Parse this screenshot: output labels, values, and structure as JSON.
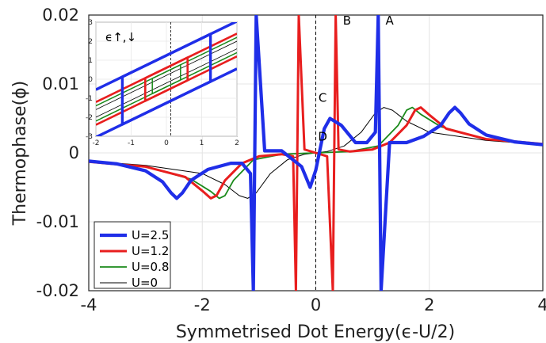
{
  "chart_data": {
    "type": "line",
    "xlabel": "Symmetrised Dot Energy(ϵ-U/2)",
    "ylabel": "Thermophase(ϕ)",
    "xlim": [
      -4,
      4
    ],
    "ylim": [
      -0.02,
      0.02
    ],
    "x_ticks": [
      "-4",
      "-2",
      "0",
      "2",
      "4"
    ],
    "y_ticks": [
      "0.02",
      "0.01",
      "0",
      "-0.01",
      "-0.02"
    ],
    "grid": true,
    "legend_position": "bottom-left",
    "series": [
      {
        "name": "U=2.5",
        "color": "#1f2ee8",
        "x": [
          -4,
          -3.5,
          -3.0,
          -2.7,
          -2.55,
          -2.45,
          -2.35,
          -2.2,
          -1.9,
          -1.5,
          -1.3,
          -1.15,
          -1.1,
          -1.05,
          -0.9,
          -0.6,
          -0.25,
          -0.15,
          -0.1,
          0.0,
          0.15,
          0.25,
          0.45,
          0.7,
          0.9,
          1.05,
          1.1,
          1.15,
          1.3,
          1.6,
          1.9,
          2.2,
          2.35,
          2.45,
          2.55,
          2.7,
          3.0,
          3.5,
          4.0
        ],
        "y": [
          -0.0012,
          -0.0016,
          -0.0026,
          -0.0042,
          -0.0058,
          -0.0066,
          -0.0058,
          -0.004,
          -0.0024,
          -0.0015,
          -0.0015,
          -0.003,
          -0.02,
          0.02,
          0.0003,
          0.0003,
          -0.002,
          -0.004,
          -0.005,
          -0.0025,
          0.0035,
          0.005,
          0.004,
          0.0015,
          0.0015,
          0.003,
          0.02,
          -0.02,
          0.0015,
          0.0015,
          0.0024,
          0.004,
          0.0058,
          0.0066,
          0.0058,
          0.0042,
          0.0026,
          0.0016,
          0.0012
        ]
      },
      {
        "name": "U=1.2",
        "color": "#e81e1e",
        "x": [
          -4,
          -3.0,
          -2.3,
          -2.0,
          -1.85,
          -1.75,
          -1.6,
          -1.3,
          -1.0,
          -0.6,
          -0.4,
          -0.35,
          -0.3,
          -0.2,
          0.0,
          0.2,
          0.3,
          0.35,
          0.4,
          0.6,
          1.0,
          1.3,
          1.6,
          1.75,
          1.85,
          2.0,
          2.3,
          3.0,
          4.0
        ],
        "y": [
          -0.0013,
          -0.002,
          -0.0035,
          -0.0055,
          -0.0066,
          -0.0062,
          -0.004,
          -0.0015,
          -0.0005,
          -0.0002,
          -0.0005,
          -0.02,
          0.02,
          0.0005,
          0.0,
          -0.0005,
          -0.02,
          0.02,
          0.0005,
          0.0002,
          0.0005,
          0.0015,
          0.004,
          0.0062,
          0.0066,
          0.0055,
          0.0035,
          0.002,
          0.0013
        ]
      },
      {
        "name": "U=0.8",
        "color": "#1a8a1a",
        "x": [
          -4,
          -3.0,
          -2.2,
          -1.85,
          -1.7,
          -1.6,
          -1.45,
          -1.1,
          -0.6,
          0.0,
          0.6,
          1.1,
          1.45,
          1.6,
          1.7,
          1.85,
          2.2,
          3.0,
          4.0
        ],
        "y": [
          -0.0013,
          -0.002,
          -0.0038,
          -0.0056,
          -0.0066,
          -0.0062,
          -0.004,
          -0.001,
          -0.0002,
          0.0,
          0.0002,
          0.001,
          0.004,
          0.0062,
          0.0066,
          0.0056,
          0.0038,
          0.002,
          0.0013
        ]
      },
      {
        "name": "U=0",
        "color": "#000000",
        "x": [
          -4,
          -3.0,
          -2.0,
          -1.6,
          -1.35,
          -1.2,
          -1.05,
          -0.8,
          -0.5,
          -0.2,
          0.0,
          0.2,
          0.5,
          0.8,
          1.05,
          1.2,
          1.35,
          1.6,
          2.0,
          3.0,
          4.0
        ],
        "y": [
          -0.0012,
          -0.0018,
          -0.003,
          -0.0046,
          -0.0062,
          -0.0066,
          -0.0058,
          -0.003,
          -0.001,
          -0.0002,
          0.0,
          0.0002,
          0.001,
          0.003,
          0.0058,
          0.0066,
          0.0062,
          0.0046,
          0.003,
          0.0018,
          0.0012
        ]
      }
    ],
    "annotations": [
      {
        "text": "A",
        "x": 1.3,
        "y": 0.0186
      },
      {
        "text": "B",
        "x": 0.55,
        "y": 0.0186
      },
      {
        "text": "C",
        "x": 0.12,
        "y": 0.0074
      },
      {
        "text": "D",
        "x": 0.12,
        "y": 0.0018
      }
    ],
    "inset": {
      "label": "ϵ↑,↓",
      "xlim": [
        -2,
        2
      ],
      "ylim": [
        -3,
        3
      ],
      "x_ticks": [
        "-2",
        "-1",
        "0",
        "1",
        "2"
      ],
      "y_ticks": [
        "3",
        "2",
        "1",
        "0",
        "-1",
        "-2",
        "-3"
      ],
      "loops": [
        {
          "name": "U=2.5",
          "color": "#1f2ee8",
          "half_width": 1.25,
          "half_gap": 1.25
        },
        {
          "name": "U=1.2",
          "color": "#e81e1e",
          "half_width": 0.6,
          "half_gap": 0.6
        },
        {
          "name": "U=0.8",
          "color": "#1a8a1a",
          "half_width": 0.4,
          "half_gap": 0.4
        },
        {
          "name": "U=0",
          "color": "#000000",
          "half_width": 0.0,
          "half_gap": 0.2
        }
      ]
    }
  }
}
